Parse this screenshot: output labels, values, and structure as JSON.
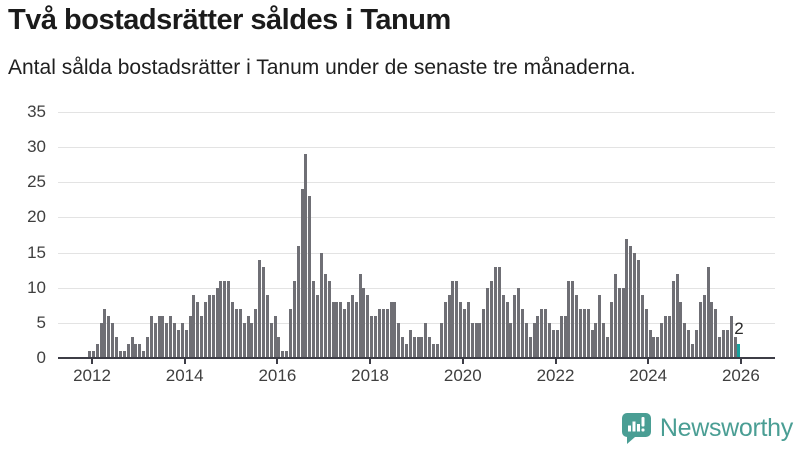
{
  "header": {
    "title": "Två bostadsrätter såldes i Tanum",
    "subtitle": "Antal sålda bostadsrätter i Tanum under de senaste tre månaderna."
  },
  "chart_data": {
    "type": "bar",
    "title": "Två bostadsrätter såldes i Tanum",
    "subtitle": "Antal sålda bostadsrätter i Tanum under de senaste tre månaderna.",
    "x_unit": "month",
    "x_range_start": "2011-12",
    "x_range_end": "2025-12",
    "ylim": [
      0,
      35
    ],
    "y_ticks": [
      0,
      5,
      10,
      15,
      20,
      25,
      30,
      35
    ],
    "x_tick_labels": [
      "2012",
      "2014",
      "2016",
      "2018",
      "2020",
      "2022",
      "2024",
      "2026"
    ],
    "grid": true,
    "legend": "none",
    "bar_color": "#6f6f75",
    "highlight_color": "#17a29e",
    "highlight_index": 168,
    "highlight_label": "2",
    "values": [
      1,
      1,
      2,
      5,
      7,
      6,
      5,
      3,
      1,
      1,
      2,
      3,
      2,
      2,
      1,
      3,
      6,
      5,
      6,
      6,
      5,
      6,
      5,
      4,
      5,
      4,
      6,
      9,
      8,
      6,
      8,
      9,
      9,
      10,
      11,
      11,
      11,
      8,
      7,
      7,
      5,
      6,
      5,
      7,
      14,
      13,
      9,
      5,
      6,
      3,
      1,
      1,
      7,
      11,
      16,
      24,
      29,
      23,
      11,
      9,
      15,
      12,
      11,
      8,
      8,
      8,
      7,
      8,
      9,
      8,
      12,
      10,
      9,
      6,
      6,
      7,
      7,
      7,
      8,
      8,
      5,
      3,
      2,
      4,
      3,
      3,
      3,
      5,
      3,
      2,
      2,
      5,
      8,
      9,
      11,
      11,
      8,
      7,
      8,
      5,
      5,
      5,
      7,
      10,
      11,
      13,
      13,
      9,
      8,
      5,
      9,
      10,
      7,
      5,
      3,
      5,
      6,
      7,
      7,
      5,
      4,
      4,
      6,
      6,
      11,
      11,
      9,
      7,
      7,
      7,
      4,
      5,
      9,
      5,
      3,
      8,
      12,
      10,
      10,
      17,
      16,
      15,
      14,
      9,
      7,
      4,
      3,
      3,
      5,
      6,
      6,
      11,
      12,
      8,
      5,
      4,
      2,
      4,
      8,
      9,
      13,
      8,
      7,
      3,
      4,
      4,
      6,
      3,
      2
    ]
  },
  "axis_style": {
    "line_color": "#3d3d46",
    "grid_color": "#e3e3e3",
    "tick_label_color": "#3f3f3f"
  },
  "branding": {
    "logo_text": "Newsworthy",
    "logo_color": "#4a9e94",
    "logo_icon": "newsworthy-chart-bubble-icon"
  }
}
